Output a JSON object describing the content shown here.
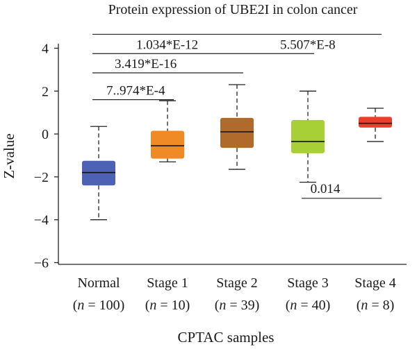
{
  "chart_data": {
    "type": "boxplot",
    "title": "Protein expression of UBE2I in colon cancer",
    "xlabel": "CPTAC samples",
    "ylabel": "Z-value",
    "ylim": [
      -6,
      4
    ],
    "yticks": [
      "4",
      "2",
      "0",
      "−2",
      "−4",
      "−6"
    ],
    "ytick_values": [
      4,
      2,
      0,
      -2,
      -4,
      -6
    ],
    "groups": [
      {
        "name": "Normal",
        "n_label": "n",
        "n_text": " = 100)",
        "color": "#4d62b4",
        "whisker_low": -4.0,
        "q1": -2.4,
        "median": -1.8,
        "q3": -1.25,
        "whisker_high": 0.35
      },
      {
        "name": "Stage 1",
        "n_label": "n",
        "n_text": " = 10)",
        "color": "#f08a24",
        "whisker_low": -1.3,
        "q1": -1.15,
        "median": -0.55,
        "q3": 0.15,
        "whisker_high": 1.55
      },
      {
        "name": "Stage 2",
        "n_label": "n",
        "n_text": " = 39)",
        "color": "#b06a2c",
        "whisker_low": -1.65,
        "q1": -0.65,
        "median": 0.1,
        "q3": 0.75,
        "whisker_high": 2.3
      },
      {
        "name": "Stage 3",
        "n_label": "n",
        "n_text": " = 40)",
        "color": "#a6d035",
        "whisker_low": -2.25,
        "q1": -0.9,
        "median": -0.35,
        "q3": 0.65,
        "whisker_high": 2.0
      },
      {
        "name": "Stage 4",
        "n_label": "n",
        "n_text": " = 8)",
        "color": "#e8402a",
        "whisker_low": -0.35,
        "q1": 0.3,
        "median": 0.5,
        "q3": 0.8,
        "whisker_high": 1.2
      }
    ],
    "significance": [
      {
        "label": "7..974*E-4",
        "from": 0,
        "to": 1,
        "y": 1.6
      },
      {
        "label": "3.419*E-16",
        "from": 0,
        "to": 2,
        "y": 2.85
      },
      {
        "label": "1.034*E-12",
        "from": 0,
        "to": 3,
        "y": 3.75
      },
      {
        "label": "5.507*E-8",
        "from": 0,
        "to": 4,
        "y": 4.65
      },
      {
        "label": "0.014",
        "from": 3,
        "to": 4,
        "y": -3.0
      }
    ]
  }
}
